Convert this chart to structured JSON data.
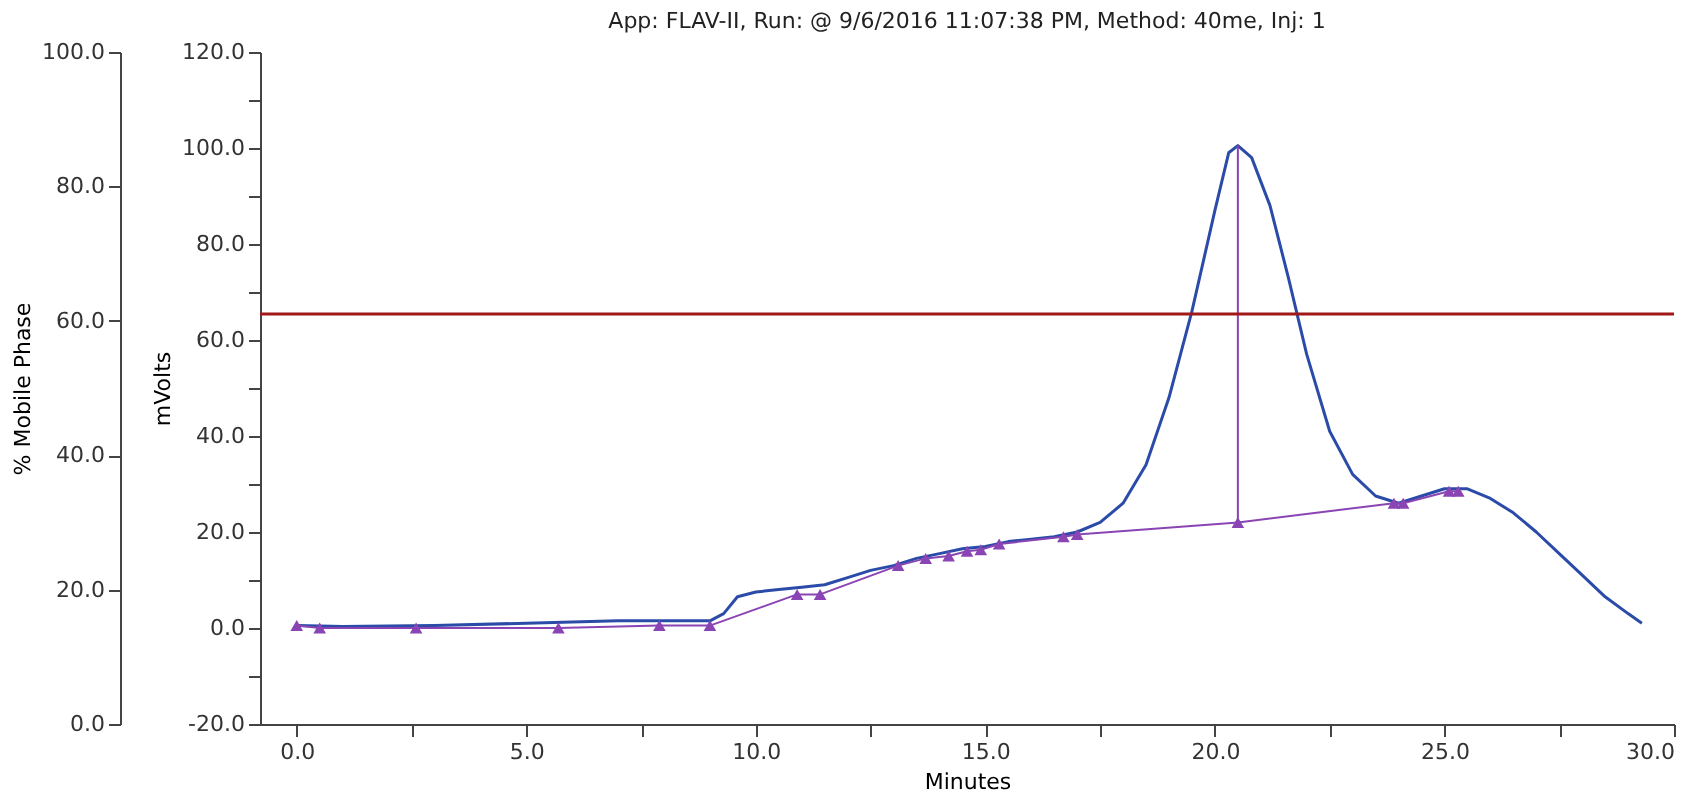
{
  "chart_data": {
    "type": "line",
    "title": "App: FLAV-II, Run: @ 9/6/2016 11:07:38 PM, Method: 40me, Inj: 1",
    "xlabel": "Minutes",
    "ylabel": "% Mobile Phase",
    "y2label": "mVolts",
    "xlim": [
      -0.8,
      30
    ],
    "xticks": [
      {
        "value": 0,
        "label": "0.0"
      },
      {
        "value": 2.5,
        "label": null
      },
      {
        "value": 5,
        "label": "5.0"
      },
      {
        "value": 7.5,
        "label": null
      },
      {
        "value": 10,
        "label": "10.0"
      },
      {
        "value": 12.5,
        "label": null
      },
      {
        "value": 15,
        "label": "15.0"
      },
      {
        "value": 17.5,
        "label": null
      },
      {
        "value": 20,
        "label": "20.0"
      },
      {
        "value": 22.5,
        "label": null
      },
      {
        "value": 25,
        "label": "25.0"
      },
      {
        "value": 27.5,
        "label": null
      },
      {
        "value": 30,
        "label": "30.0"
      }
    ],
    "ylim": [
      0,
      100
    ],
    "yticks": [
      {
        "value": 0,
        "label": "0.0"
      },
      {
        "value": 20,
        "label": "20.0"
      },
      {
        "value": 40,
        "label": "40.0"
      },
      {
        "value": 60,
        "label": "60.0"
      },
      {
        "value": 80,
        "label": "80.0"
      },
      {
        "value": 100,
        "label": "100.0"
      }
    ],
    "y2lim": [
      -20,
      120
    ],
    "y2ticks": [
      {
        "value": -20,
        "label": "-20.0"
      },
      {
        "value": -10,
        "label": null
      },
      {
        "value": 0,
        "label": "0.0"
      },
      {
        "value": 10,
        "label": null
      },
      {
        "value": 20,
        "label": "20.0"
      },
      {
        "value": 30,
        "label": null
      },
      {
        "value": 40,
        "label": "40.0"
      },
      {
        "value": 50,
        "label": null
      },
      {
        "value": 60,
        "label": "60.0"
      },
      {
        "value": 70,
        "label": null
      },
      {
        "value": 80,
        "label": "80.0"
      },
      {
        "value": 90,
        "label": null
      },
      {
        "value": 100,
        "label": "100.0"
      },
      {
        "value": 110,
        "label": null
      },
      {
        "value": 120,
        "label": "120.0"
      }
    ],
    "grid": false,
    "ref_lines": [
      {
        "axis": "y",
        "value": 61,
        "color": "#a01818",
        "line_style": "solid"
      }
    ],
    "series": [
      {
        "axis": "y2",
        "color": "#2b4ba8",
        "marker": "none",
        "x": [
          0,
          1,
          3,
          5,
          7,
          8,
          9,
          9.3,
          9.6,
          10,
          10.5,
          11,
          11.5,
          12,
          12.5,
          13,
          13.5,
          14,
          14.5,
          15,
          15.5,
          16,
          16.5,
          17,
          17.5,
          18,
          18.5,
          19,
          19.5,
          20,
          20.3,
          20.5,
          20.8,
          21.2,
          21.6,
          22,
          22.5,
          23,
          23.5,
          24,
          24.5,
          25,
          25.5,
          26,
          26.5,
          27,
          27.5,
          28,
          28.5,
          29,
          29.3
        ],
        "values": [
          0.5,
          0.3,
          0.5,
          1,
          1.5,
          1.5,
          1.5,
          3,
          6.5,
          7.5,
          8,
          8.5,
          9,
          10.5,
          12,
          13,
          14.5,
          15.5,
          16.5,
          17,
          18,
          18.5,
          19,
          20,
          22,
          26,
          34,
          48,
          66,
          87,
          99,
          100.5,
          98,
          88,
          73,
          57,
          41,
          32,
          27.5,
          26,
          27.5,
          29,
          29,
          27,
          24,
          20,
          15.5,
          11,
          6.5,
          3,
          1
        ]
      },
      {
        "axis": "y2",
        "color": "#8a44b4",
        "marker": "triangle",
        "x": [
          0,
          0.5,
          2.6,
          5.7,
          7.9,
          9,
          10.9,
          11.4,
          13.1,
          13.7,
          14.2,
          14.6,
          14.9,
          15.3,
          16.7,
          17,
          20.5,
          23.9,
          24.1,
          25.1,
          25.3
        ],
        "values": [
          0.5,
          0,
          0,
          0,
          0.5,
          0.5,
          7,
          7,
          13,
          14.5,
          15,
          16,
          16.3,
          17.5,
          19,
          19.5,
          22,
          26,
          26,
          28.5,
          28.5
        ]
      },
      {
        "axis": "y2",
        "color": "#8a44b4",
        "marker": "none",
        "x": [
          20.5,
          20.5
        ],
        "values": [
          22,
          100.5
        ]
      }
    ]
  }
}
